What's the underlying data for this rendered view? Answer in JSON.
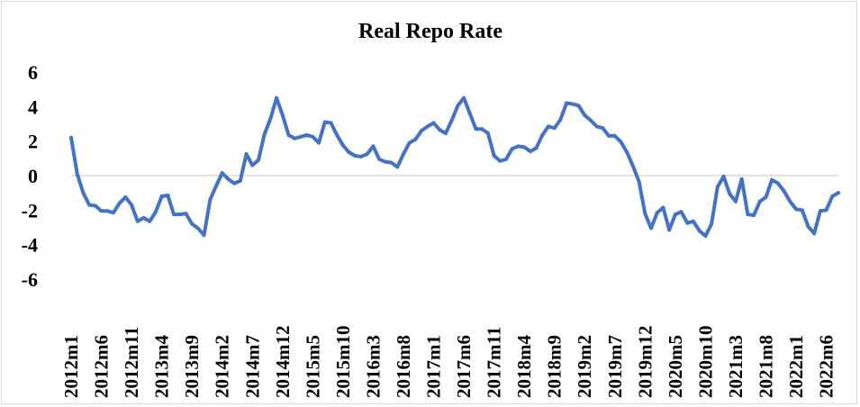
{
  "chart_data": {
    "type": "line",
    "title": "Real Repo Rate",
    "xlabel": "",
    "ylabel": "",
    "ylim": [
      -6,
      6
    ],
    "yticks": [
      6,
      4,
      2,
      0,
      -2,
      -4,
      -6
    ],
    "grid": false,
    "legend": "none",
    "line_color": "#4472c4",
    "x_tick_labels": [
      "2012m1",
      "2012m6",
      "2012m11",
      "2013m4",
      "2013m9",
      "2014m2",
      "2014m7",
      "2014m12",
      "2015m5",
      "2015m10",
      "2016m3",
      "2016m8",
      "2017m1",
      "2017m6",
      "2017m11",
      "2018m4",
      "2018m9",
      "2019m2",
      "2019m7",
      "2019m12",
      "2020m5",
      "2020m10",
      "2021m3",
      "2021m8",
      "2022m1",
      "2022m6"
    ],
    "start_period": "2012m1",
    "series": [
      {
        "values": [
          2.2,
          0.1,
          -1.0,
          -1.7,
          -1.75,
          -2.05,
          -2.05,
          -2.15,
          -1.6,
          -1.25,
          -1.7,
          -2.65,
          -2.45,
          -2.65,
          -2.1,
          -1.2,
          -1.15,
          -2.25,
          -2.25,
          -2.2,
          -2.8,
          -3.05,
          -3.45,
          -1.4,
          -0.6,
          0.15,
          -0.2,
          -0.45,
          -0.3,
          1.25,
          0.6,
          0.9,
          2.4,
          3.3,
          4.5,
          3.5,
          2.35,
          2.15,
          2.25,
          2.35,
          2.25,
          1.9,
          3.1,
          3.05,
          2.35,
          1.75,
          1.35,
          1.15,
          1.1,
          1.25,
          1.7,
          0.95,
          0.8,
          0.75,
          0.5,
          1.25,
          1.9,
          2.1,
          2.6,
          2.85,
          3.05,
          2.65,
          2.45,
          3.2,
          4.05,
          4.5,
          3.6,
          2.7,
          2.7,
          2.45,
          1.15,
          0.85,
          0.95,
          1.55,
          1.7,
          1.65,
          1.4,
          1.6,
          2.35,
          2.85,
          2.75,
          3.25,
          4.2,
          4.15,
          4.05,
          3.5,
          3.2,
          2.85,
          2.75,
          2.3,
          2.3,
          1.95,
          1.35,
          0.55,
          -0.35,
          -2.2,
          -3.05,
          -2.15,
          -1.85,
          -3.15,
          -2.25,
          -2.1,
          -2.75,
          -2.65,
          -3.2,
          -3.5,
          -2.8,
          -0.65,
          -0.05,
          -1.05,
          -1.5,
          -0.2,
          -2.25,
          -2.3,
          -1.5,
          -1.25,
          -0.25,
          -0.45,
          -0.9,
          -1.5,
          -1.95,
          -2.0,
          -2.95,
          -3.35,
          -2.05,
          -2.0,
          -1.2,
          -1.0
        ]
      }
    ]
  }
}
